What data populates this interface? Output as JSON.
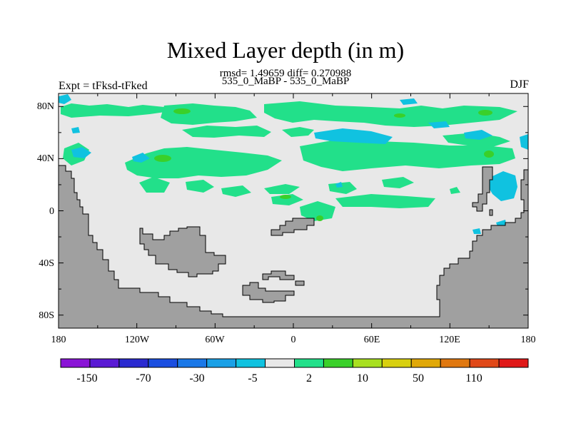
{
  "title": "Mixed Layer depth (in m)",
  "subtitle": "rmsd= 1.49659 diff= 0.270988",
  "case_label": "535_0_MaBP - 535_0_MaBP",
  "left_string": "Expt = tFksd-tFked",
  "right_string": "DJF",
  "map": {
    "x_ticks": [
      "180",
      "120W",
      "60W",
      "0",
      "60E",
      "120E",
      "180"
    ],
    "y_ticks": [
      "80N",
      "40N",
      "0",
      "40S",
      "80S"
    ],
    "ocean_color": "#e8e8e8",
    "land_color": "#a0a0a0"
  },
  "colorbar": {
    "labels": [
      "-150",
      "-70",
      "-30",
      "-5",
      "2",
      "10",
      "50",
      "110"
    ],
    "colors": [
      "#8a14d6",
      "#5a1ad4",
      "#2a2ad0",
      "#1a4ee0",
      "#1a78e8",
      "#1aa0e6",
      "#10c2e0",
      "#e8e8e8",
      "#22e08a",
      "#3ad02a",
      "#a8e020",
      "#d8d010",
      "#e0a808",
      "#e07810",
      "#e04818",
      "#e01818"
    ]
  }
}
